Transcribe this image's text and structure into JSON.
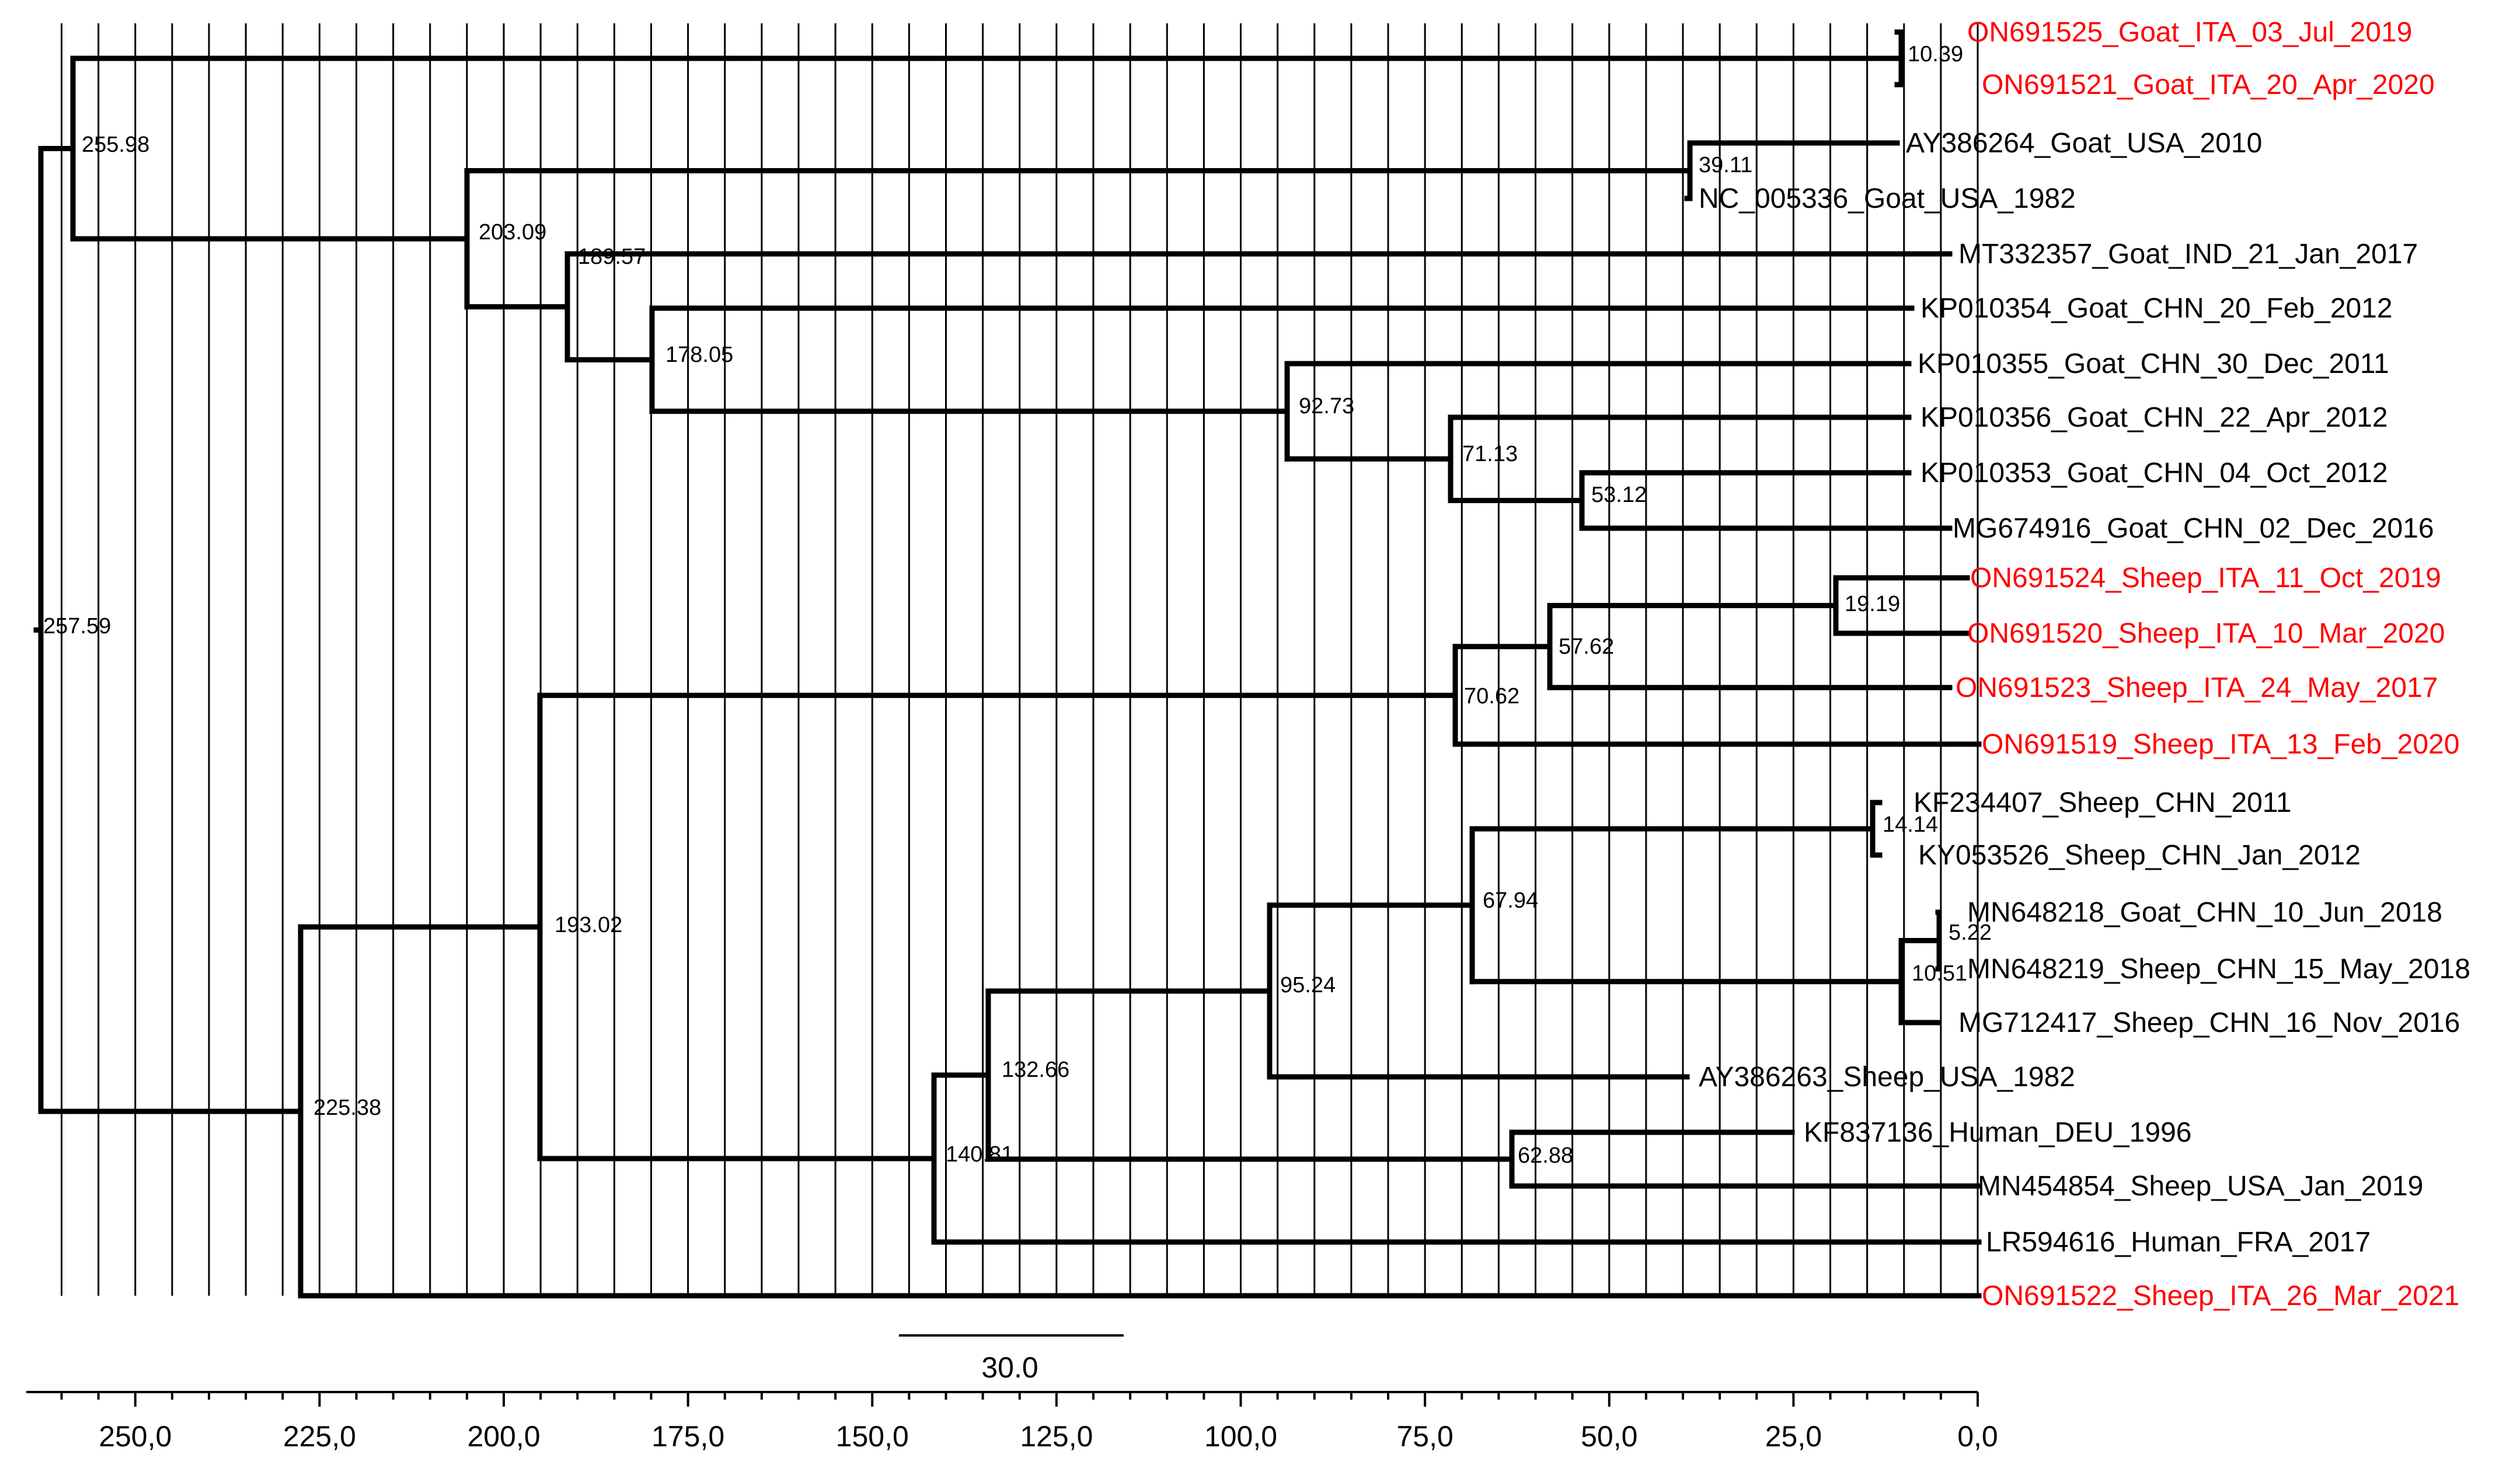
{
  "figure": {
    "type": "phylogenetic-tree",
    "highlight_color": "#ff0000",
    "default_color": "#000000"
  },
  "tips": [
    {
      "label": "ON691525_Goat_ITA_03_Jul_2019",
      "highlight": true
    },
    {
      "label": "ON691521_Goat_ITA_20_Apr_2020",
      "highlight": true
    },
    {
      "label": "AY386264_Goat_USA_2010",
      "highlight": false
    },
    {
      "label": "NC_005336_Goat_USA_1982",
      "highlight": false
    },
    {
      "label": "MT332357_Goat_IND_21_Jan_2017",
      "highlight": false
    },
    {
      "label": "KP010354_Goat_CHN_20_Feb_2012",
      "highlight": false
    },
    {
      "label": "KP010355_Goat_CHN_30_Dec_2011",
      "highlight": false
    },
    {
      "label": "KP010356_Goat_CHN_22_Apr_2012",
      "highlight": false
    },
    {
      "label": "KP010353_Goat_CHN_04_Oct_2012",
      "highlight": false
    },
    {
      "label": "MG674916_Goat_CHN_02_Dec_2016",
      "highlight": false
    },
    {
      "label": "ON691524_Sheep_ITA_11_Oct_2019",
      "highlight": true
    },
    {
      "label": "ON691520_Sheep_ITA_10_Mar_2020",
      "highlight": true
    },
    {
      "label": "ON691523_Sheep_ITA_24_May_2017",
      "highlight": true
    },
    {
      "label": "ON691519_Sheep_ITA_13_Feb_2020",
      "highlight": true
    },
    {
      "label": "KF234407_Sheep_CHN_2011",
      "highlight": false
    },
    {
      "label": "KY053526_Sheep_CHN_Jan_2012",
      "highlight": false
    },
    {
      "label": "MN648218_Goat_CHN_10_Jun_2018",
      "highlight": false
    },
    {
      "label": "MN648219_Sheep_CHN_15_May_2018",
      "highlight": false
    },
    {
      "label": "MG712417_Sheep_CHN_16_Nov_2016",
      "highlight": false
    },
    {
      "label": "AY386263_Sheep_USA_1982",
      "highlight": false
    },
    {
      "label": "KF837136_Human_DEU_1996",
      "highlight": false
    },
    {
      "label": "MN454854_Sheep_USA_Jan_2019",
      "highlight": false
    },
    {
      "label": "LR594616_Human_FRA_2017",
      "highlight": false
    },
    {
      "label": "ON691522_Sheep_ITA_26_Mar_2021",
      "highlight": true
    }
  ],
  "node_labels": [
    "257.59",
    "255.98",
    "10.39",
    "203.09",
    "39.11",
    "189.57",
    "178.05",
    "92.73",
    "71.13",
    "53.12",
    "225.38",
    "193.02",
    "70.62",
    "57.62",
    "19.19",
    "140.81",
    "132.66",
    "95.24",
    "67.94",
    "14.14",
    "10.51",
    "5.22",
    "62.88"
  ],
  "scale_bar": {
    "label": "30.0",
    "value": 30.0
  },
  "axis": {
    "min": 0,
    "max": 261,
    "reversed": true,
    "ticks": [
      "250,0",
      "225,0",
      "200,0",
      "175,0",
      "150,0",
      "125,0",
      "100,0",
      "75,0",
      "50,0",
      "25,0",
      "0,0"
    ],
    "tick_values": [
      250,
      225,
      200,
      175,
      150,
      125,
      100,
      75,
      50,
      25,
      0
    ]
  }
}
